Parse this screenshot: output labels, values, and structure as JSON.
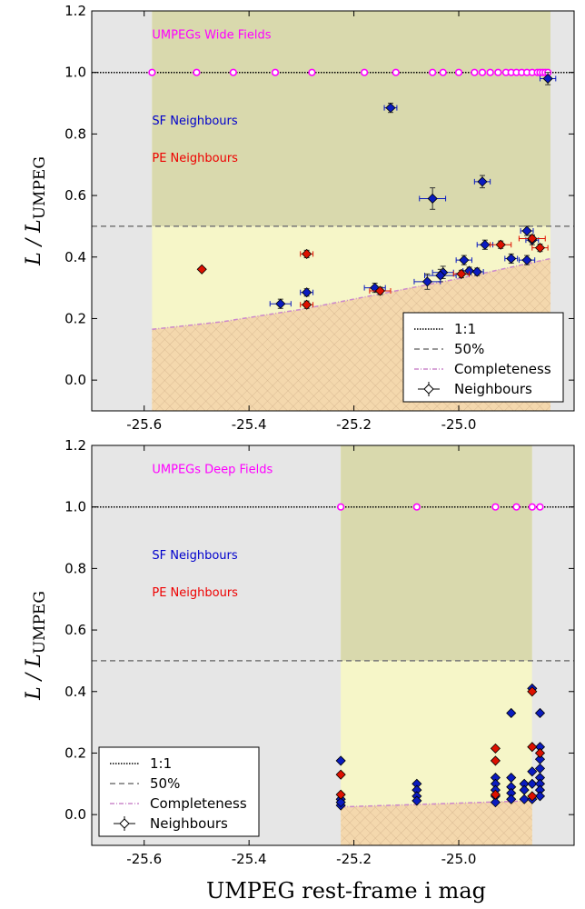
{
  "x_axis_label": "UMPEG rest-frame i mag",
  "chart_data": [
    {
      "type": "scatter",
      "panel": "top",
      "xlim": [
        -25.7,
        -24.78
      ],
      "ylim": [
        -0.1,
        1.2
      ],
      "xticks": [
        -25.6,
        -25.4,
        -25.2,
        -25.0
      ],
      "xtick_labels": [
        "-25.6",
        "-25.4",
        "-25.2",
        "-25.0"
      ],
      "yticks": [
        0.0,
        0.2,
        0.4,
        0.6,
        0.8,
        1.0,
        1.2
      ],
      "ytick_labels": [
        "0.0",
        "0.2",
        "0.4",
        "0.6",
        "0.8",
        "1.0",
        "1.2"
      ],
      "ylabel_main": "L / L",
      "ylabel_sub": "UMPEG",
      "span": [
        -25.585,
        -24.825
      ],
      "reference_lines": {
        "one_to_one": 1.0,
        "fifty_percent": 0.5
      },
      "annotations": [
        {
          "text": "UMPEGs Wide Fields",
          "color": "#ff00ff",
          "x": -25.585,
          "y": 1.11
        },
        {
          "text": "SF Neighbours",
          "color": "#0000cc",
          "x": -25.585,
          "y": 0.83
        },
        {
          "text": "PE Neighbours",
          "color": "#ee0000",
          "x": -25.585,
          "y": 0.71
        }
      ],
      "completeness": {
        "x": [
          -25.585,
          -25.45,
          -25.3,
          -25.15,
          -25.0,
          -24.825
        ],
        "y": [
          0.165,
          0.19,
          0.23,
          0.28,
          0.33,
          0.395
        ]
      },
      "umpegs": {
        "x": [
          -25.585,
          -25.5,
          -25.43,
          -25.35,
          -25.28,
          -25.18,
          -25.12,
          -25.05,
          -25.03,
          -25.0,
          -24.97,
          -24.955,
          -24.94,
          -24.925,
          -24.91,
          -24.9,
          -24.89,
          -24.88,
          -24.87,
          -24.86,
          -24.85,
          -24.845,
          -24.84,
          -24.835,
          -24.83
        ],
        "y": 1.0
      },
      "sf_neighbours": [
        {
          "x": -24.83,
          "y": 0.98,
          "xerr": 0.015,
          "yerr": 0.02
        },
        {
          "x": -25.13,
          "y": 0.885,
          "xerr": 0.012,
          "yerr": 0.015
        },
        {
          "x": -25.05,
          "y": 0.59,
          "xerr": 0.025,
          "yerr": 0.035
        },
        {
          "x": -24.955,
          "y": 0.645,
          "xerr": 0.015,
          "yerr": 0.02
        },
        {
          "x": -24.87,
          "y": 0.485,
          "xerr": 0.012,
          "yerr": 0.015
        },
        {
          "x": -24.95,
          "y": 0.44,
          "xerr": 0.015,
          "yerr": 0.015
        },
        {
          "x": -24.86,
          "y": 0.455,
          "xerr": 0.012,
          "yerr": 0.015
        },
        {
          "x": -24.9,
          "y": 0.395,
          "xerr": 0.012,
          "yerr": 0.015
        },
        {
          "x": -24.87,
          "y": 0.39,
          "xerr": 0.015,
          "yerr": 0.015
        },
        {
          "x": -24.99,
          "y": 0.39,
          "xerr": 0.015,
          "yerr": 0.015
        },
        {
          "x": -24.98,
          "y": 0.355,
          "xerr": 0.012,
          "yerr": 0.012
        },
        {
          "x": -24.965,
          "y": 0.352,
          "xerr": 0.012,
          "yerr": 0.012
        },
        {
          "x": -25.03,
          "y": 0.35,
          "xerr": 0.02,
          "yerr": 0.02
        },
        {
          "x": -25.035,
          "y": 0.34,
          "xerr": 0.03,
          "yerr": 0.02
        },
        {
          "x": -25.06,
          "y": 0.32,
          "xerr": 0.025,
          "yerr": 0.025
        },
        {
          "x": -25.16,
          "y": 0.3,
          "xerr": 0.02,
          "yerr": 0.015
        },
        {
          "x": -25.34,
          "y": 0.248,
          "xerr": 0.02,
          "yerr": 0.015
        },
        {
          "x": -25.29,
          "y": 0.285,
          "xerr": 0.012,
          "yerr": 0.012
        }
      ],
      "pe_neighbours": [
        {
          "x": -25.49,
          "y": 0.36,
          "xerr": 0,
          "yerr": 0
        },
        {
          "x": -25.29,
          "y": 0.41,
          "xerr": 0.012,
          "yerr": 0.012
        },
        {
          "x": -25.29,
          "y": 0.245,
          "xerr": 0.012,
          "yerr": 0.012
        },
        {
          "x": -25.15,
          "y": 0.29,
          "xerr": 0.02,
          "yerr": 0.012
        },
        {
          "x": -24.995,
          "y": 0.345,
          "xerr": 0.015,
          "yerr": 0.012
        },
        {
          "x": -24.92,
          "y": 0.44,
          "xerr": 0.02,
          "yerr": 0.012
        },
        {
          "x": -24.86,
          "y": 0.46,
          "xerr": 0.025,
          "yerr": 0.012
        },
        {
          "x": -24.845,
          "y": 0.43,
          "xerr": 0.015,
          "yerr": 0.012
        }
      ],
      "legend": {
        "position": "lower right",
        "entries": [
          "1:1",
          "50%",
          "Completeness",
          "Neighbours"
        ]
      }
    },
    {
      "type": "scatter",
      "panel": "bottom",
      "xlim": [
        -25.7,
        -24.78
      ],
      "ylim": [
        -0.1,
        1.2
      ],
      "xticks": [
        -25.6,
        -25.4,
        -25.2,
        -25.0
      ],
      "xtick_labels": [
        "-25.6",
        "-25.4",
        "-25.2",
        "-25.0"
      ],
      "yticks": [
        0.0,
        0.2,
        0.4,
        0.6,
        0.8,
        1.0,
        1.2
      ],
      "ytick_labels": [
        "0.0",
        "0.2",
        "0.4",
        "0.6",
        "0.8",
        "1.0",
        "1.2"
      ],
      "ylabel_main": "L / L",
      "ylabel_sub": "UMPEG",
      "span": [
        -25.225,
        -24.86
      ],
      "reference_lines": {
        "one_to_one": 1.0,
        "fifty_percent": 0.5
      },
      "annotations": [
        {
          "text": "UMPEGs Deep Fields",
          "color": "#ff00ff",
          "x": -25.585,
          "y": 1.11
        },
        {
          "text": "SF Neighbours",
          "color": "#0000cc",
          "x": -25.585,
          "y": 0.83
        },
        {
          "text": "PE Neighbours",
          "color": "#ee0000",
          "x": -25.585,
          "y": 0.71
        }
      ],
      "completeness": {
        "x": [
          -25.225,
          -24.86
        ],
        "y": [
          0.025,
          0.045
        ]
      },
      "umpegs": {
        "x": [
          -25.225,
          -25.08,
          -24.93,
          -24.89,
          -24.86,
          -24.845
        ],
        "y": 1.0
      },
      "sf_neighbours": [
        {
          "x": -25.225,
          "y": 0.175
        },
        {
          "x": -25.225,
          "y": 0.05
        },
        {
          "x": -25.225,
          "y": 0.03
        },
        {
          "x": -25.225,
          "y": 0.04
        },
        {
          "x": -25.08,
          "y": 0.1
        },
        {
          "x": -25.08,
          "y": 0.08
        },
        {
          "x": -25.08,
          "y": 0.06
        },
        {
          "x": -25.08,
          "y": 0.045
        },
        {
          "x": -24.93,
          "y": 0.12
        },
        {
          "x": -24.93,
          "y": 0.1
        },
        {
          "x": -24.93,
          "y": 0.08
        },
        {
          "x": -24.93,
          "y": 0.06
        },
        {
          "x": -24.93,
          "y": 0.04
        },
        {
          "x": -24.9,
          "y": 0.33
        },
        {
          "x": -24.9,
          "y": 0.12
        },
        {
          "x": -24.9,
          "y": 0.09
        },
        {
          "x": -24.9,
          "y": 0.07
        },
        {
          "x": -24.9,
          "y": 0.05
        },
        {
          "x": -24.875,
          "y": 0.1
        },
        {
          "x": -24.875,
          "y": 0.08
        },
        {
          "x": -24.875,
          "y": 0.05
        },
        {
          "x": -24.86,
          "y": 0.41
        },
        {
          "x": -24.86,
          "y": 0.14
        },
        {
          "x": -24.86,
          "y": 0.1
        },
        {
          "x": -24.86,
          "y": 0.05
        },
        {
          "x": -24.845,
          "y": 0.33
        },
        {
          "x": -24.845,
          "y": 0.22
        },
        {
          "x": -24.845,
          "y": 0.18
        },
        {
          "x": -24.845,
          "y": 0.15
        },
        {
          "x": -24.845,
          "y": 0.12
        },
        {
          "x": -24.845,
          "y": 0.1
        },
        {
          "x": -24.845,
          "y": 0.08
        },
        {
          "x": -24.845,
          "y": 0.06
        }
      ],
      "pe_neighbours": [
        {
          "x": -25.225,
          "y": 0.13
        },
        {
          "x": -25.225,
          "y": 0.065
        },
        {
          "x": -24.93,
          "y": 0.215
        },
        {
          "x": -24.93,
          "y": 0.175
        },
        {
          "x": -24.93,
          "y": 0.065
        },
        {
          "x": -24.86,
          "y": 0.4
        },
        {
          "x": -24.86,
          "y": 0.22
        },
        {
          "x": -24.86,
          "y": 0.06
        },
        {
          "x": -24.845,
          "y": 0.2
        }
      ],
      "legend": {
        "position": "lower left",
        "entries": [
          "1:1",
          "50%",
          "Completeness",
          "Neighbours"
        ]
      }
    }
  ]
}
